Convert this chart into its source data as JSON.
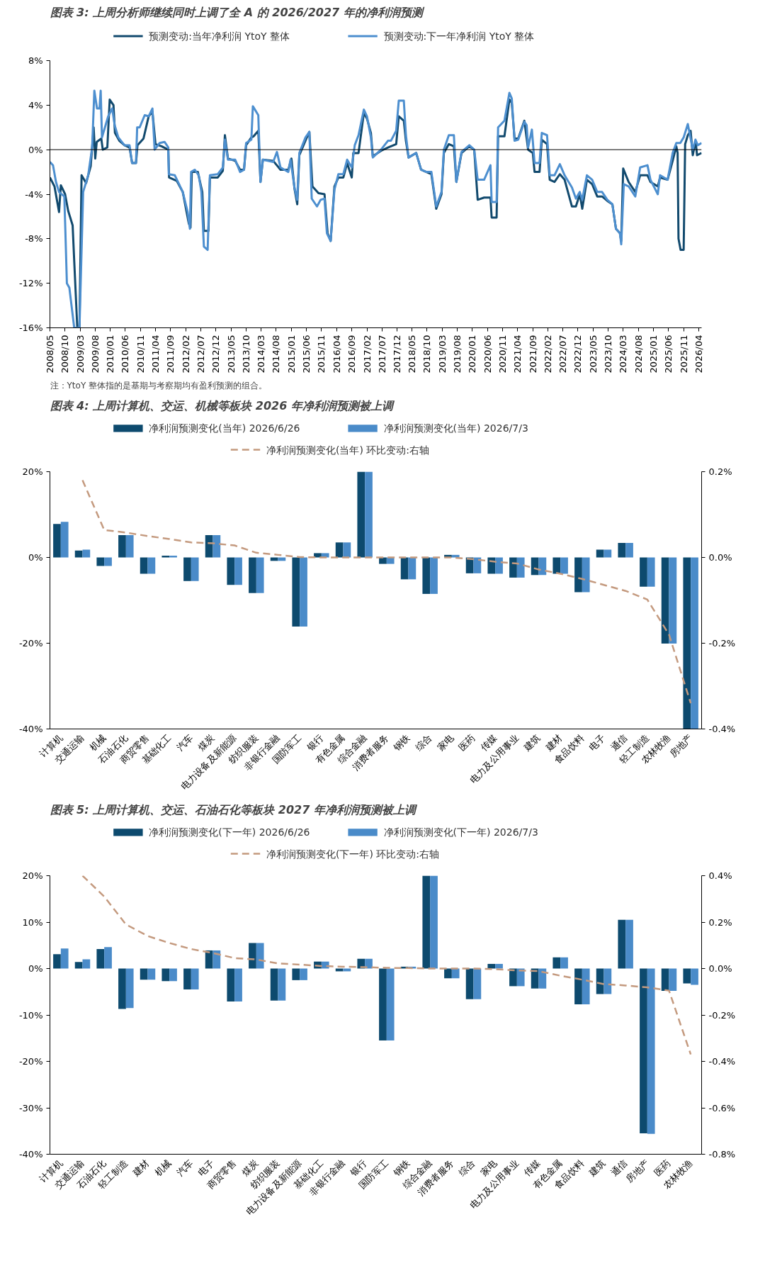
{
  "chart_data": [
    {
      "type": "line",
      "title": "图表 3: 上周分析师继续同时上调了全 A 的 2026/2027 年的净利润预测",
      "annotations": [
        "注：YtoY 整体指的是基期与考察期均有盈利预测的组合。"
      ],
      "legend": "top",
      "grid": false,
      "line_style": "solid",
      "xlim": [
        "2008-05-01",
        "2026-05-01"
      ],
      "ylim": [
        -16,
        8
      ],
      "yticks": [
        {
          "value": 8,
          "label": "8%"
        },
        {
          "value": 4,
          "label": "4%"
        },
        {
          "value": 0,
          "label": "0%"
        },
        {
          "value": -4,
          "label": "-4%"
        },
        {
          "value": -8,
          "label": "-8%"
        },
        {
          "value": -12,
          "label": "-12%"
        },
        {
          "value": -16,
          "label": "-16%"
        }
      ],
      "xticks": [
        {
          "value": "2008-05",
          "label": "2008/05"
        },
        {
          "value": "2008-10",
          "label": "2008/10"
        },
        {
          "value": "2009-03",
          "label": "2009/03"
        },
        {
          "value": "2009-08",
          "label": "2009/08"
        },
        {
          "value": "2010-01",
          "label": "2010/01"
        },
        {
          "value": "2010-06",
          "label": "2010/06"
        },
        {
          "value": "2010-11",
          "label": "2010/11"
        },
        {
          "value": "2011-04",
          "label": "2011/04"
        },
        {
          "value": "2011-09",
          "label": "2011/09"
        },
        {
          "value": "2012-02",
          "label": "2012/02"
        },
        {
          "value": "2012-07",
          "label": "2012/07"
        },
        {
          "value": "2012-12",
          "label": "2012/12"
        },
        {
          "value": "2013-05",
          "label": "2013/05"
        },
        {
          "value": "2013-10",
          "label": "2013/10"
        },
        {
          "value": "2014-03",
          "label": "2014/03"
        },
        {
          "value": "2014-08",
          "label": "2014/08"
        },
        {
          "value": "2015-01",
          "label": "2015/01"
        },
        {
          "value": "2015-06",
          "label": "2015/06"
        },
        {
          "value": "2015-11",
          "label": "2015/11"
        },
        {
          "value": "2016-04",
          "label": "2016/04"
        },
        {
          "value": "2016-09",
          "label": "2016/09"
        },
        {
          "value": "2017-02",
          "label": "2017/02"
        },
        {
          "value": "2017-07",
          "label": "2017/07"
        },
        {
          "value": "2017-12",
          "label": "2017/12"
        },
        {
          "value": "2018-05",
          "label": "2018/05"
        },
        {
          "value": "2018-10",
          "label": "2018/10"
        },
        {
          "value": "2019-03",
          "label": "2019/03"
        },
        {
          "value": "2019-08",
          "label": "2019/08"
        },
        {
          "value": "2020-01",
          "label": "2020/01"
        },
        {
          "value": "2020-06",
          "label": "2020/06"
        },
        {
          "value": "2020-11",
          "label": "2020/11"
        },
        {
          "value": "2021-04",
          "label": "2021/04"
        },
        {
          "value": "2021-09",
          "label": "2021/09"
        },
        {
          "value": "2022-02",
          "label": "2022/02"
        },
        {
          "value": "2022-07",
          "label": "2022/07"
        },
        {
          "value": "2022-12",
          "label": "2022/12"
        },
        {
          "value": "2023-05",
          "label": "2023/05"
        },
        {
          "value": "2023-10",
          "label": "2023/10"
        },
        {
          "value": "2024-03",
          "label": "2024/03"
        },
        {
          "value": "2024-08",
          "label": "2024/08"
        },
        {
          "value": "2025-01",
          "label": "2025/01"
        },
        {
          "value": "2025-06",
          "label": "2025/06"
        },
        {
          "value": "2025-11",
          "label": "2025/11"
        },
        {
          "value": "2026-04",
          "label": "2026/04"
        }
      ],
      "ref_lines": [
        {
          "axis": "y",
          "value": 0,
          "color": "#000000"
        }
      ],
      "series": [
        {
          "name": "预测变动:当年净利润 YtoY 整体",
          "color": "#124a6e",
          "x": [
            "2008-05-01",
            "2008-06-16",
            "2008-08-01",
            "2008-08-19",
            "2008-10-01",
            "2008-11-01",
            "2008-12-16",
            "2009-01-01",
            "2009-02-01",
            "2009-02-23",
            "2009-03-16",
            "2009-05-01",
            "2009-06-16",
            "2009-07-16",
            "2009-08-01",
            "2009-08-16",
            "2009-10-01",
            "2009-10-16",
            "2009-12-01",
            "2009-12-25",
            "2010-02-01",
            "2010-02-16",
            "2010-04-01",
            "2010-05-23",
            "2010-07-13",
            "2010-08-08",
            "2010-09-16",
            "2010-10-01",
            "2010-12-01",
            "2011-01-22",
            "2011-03-01",
            "2011-04-01",
            "2011-06-01",
            "2011-08-08",
            "2011-08-16",
            "2011-11-01",
            "2012-01-01",
            "2012-03-01",
            "2012-03-19",
            "2012-04-01",
            "2012-06-01",
            "2012-07-16",
            "2012-08-01",
            "2012-09-16",
            "2012-10-01",
            "2012-12-19",
            "2013-02-08",
            "2013-03-01",
            "2013-04-01",
            "2013-06-13",
            "2013-08-01",
            "2013-09-10",
            "2013-10-01",
            "2013-11-23",
            "2013-12-16",
            "2014-02-01",
            "2014-02-23",
            "2014-03-19",
            "2014-07-01",
            "2014-09-13",
            "2014-12-01",
            "2015-01-01",
            "2015-02-01",
            "2015-03-01",
            "2015-03-22",
            "2015-06-01",
            "2015-07-01",
            "2015-08-01",
            "2015-10-01",
            "2015-12-01",
            "2016-01-01",
            "2016-02-01",
            "2016-03-10",
            "2016-04-19",
            "2016-06-08",
            "2016-07-16",
            "2016-09-01",
            "2016-09-16",
            "2016-11-08",
            "2017-01-01",
            "2017-02-01",
            "2017-03-13",
            "2017-04-01",
            "2017-06-23",
            "2017-09-01",
            "2017-11-23",
            "2017-12-19",
            "2018-02-08",
            "2018-03-01",
            "2018-03-28",
            "2018-06-13",
            "2018-08-01",
            "2018-09-23",
            "2018-11-13",
            "2019-01-01",
            "2019-02-23",
            "2019-03-19",
            "2019-05-08",
            "2019-06-28",
            "2019-07-23",
            "2019-09-13",
            "2019-12-01",
            "2020-01-19",
            "2020-02-23",
            "2020-04-28",
            "2020-07-01",
            "2020-07-13",
            "2020-09-01",
            "2020-09-16",
            "2020-11-19",
            "2021-01-08",
            "2021-02-01",
            "2021-03-01",
            "2021-04-07",
            "2021-06-08",
            "2021-07-16",
            "2021-09-01",
            "2021-09-19",
            "2021-11-08",
            "2021-12-01",
            "2022-01-23",
            "2022-02-19",
            "2022-04-08",
            "2022-06-01",
            "2022-07-19",
            "2022-10-01",
            "2022-11-10",
            "2022-12-19",
            "2023-01-13",
            "2023-03-01",
            "2023-04-23",
            "2023-06-13",
            "2023-08-01",
            "2023-09-23",
            "2023-11-13",
            "2023-12-19",
            "2024-01-28",
            "2024-02-10",
            "2024-03-01",
            "2024-04-25",
            "2024-07-01",
            "2024-08-19",
            "2024-11-01",
            "2024-12-01",
            "2025-02-13",
            "2025-03-08",
            "2025-05-23",
            "2025-07-13",
            "2025-08-19",
            "2025-09-01",
            "2025-09-10",
            "2025-10-01",
            "2025-11-01",
            "2025-11-16",
            "2025-12-13",
            "2026-01-10",
            "2026-02-01",
            "2026-03-01",
            "2026-03-16",
            "2026-05-01"
          ],
          "values": [
            -2.5,
            -3.3,
            -5.6,
            -3.2,
            -4.0,
            -5.5,
            -6.8,
            -10,
            -16,
            -16,
            -2.3,
            -3.0,
            -1.5,
            2.0,
            -0.8,
            0.7,
            1.0,
            0,
            0.2,
            4.5,
            4.0,
            1.5,
            0.8,
            0.4,
            0.2,
            -1.2,
            -1.2,
            0.4,
            1.0,
            3.0,
            3.4,
            0.5,
            0.3,
            0,
            -2.5,
            -2.8,
            -3.8,
            -6.6,
            -7.0,
            -2.0,
            -2.0,
            -3.8,
            -7.3,
            -7.3,
            -2.5,
            -2.5,
            -1.9,
            1.3,
            -0.8,
            -1.0,
            -1.8,
            -1.8,
            0.4,
            1.1,
            1.2,
            1.7,
            -2.9,
            -0.9,
            -1.0,
            -1.8,
            -1.8,
            -0.8,
            -3.5,
            -4.9,
            -0.5,
            1.0,
            1.6,
            -3.3,
            -3.9,
            -4.0,
            -7.5,
            -8.2,
            -3.3,
            -2.5,
            -2.5,
            -1.2,
            -2.5,
            -0.3,
            -0.3,
            3.3,
            2.8,
            1.5,
            -0.6,
            -0.1,
            0.2,
            0.5,
            3.0,
            2.6,
            0.8,
            -0.7,
            -0.3,
            -1.8,
            -2.0,
            -2.2,
            -5.3,
            -4.0,
            -0.3,
            0.5,
            0.3,
            -2.9,
            -0.3,
            0.3,
            0,
            -4.5,
            -4.3,
            -4.3,
            -6.1,
            -6.1,
            1.2,
            1.2,
            4.5,
            4.2,
            1.0,
            1.0,
            2.6,
            0,
            -0.3,
            -2.0,
            -2.0,
            0.9,
            0.5,
            -2.7,
            -2.9,
            -2.2,
            -2.7,
            -5.1,
            -5.1,
            -4.0,
            -5.3,
            -2.7,
            -3.1,
            -4.2,
            -4.2,
            -4.6,
            -4.9,
            -7.1,
            -7.5,
            -8.2,
            -1.7,
            -2.9,
            -3.8,
            -2.3,
            -2.3,
            -2.9,
            -3.3,
            -2.5,
            -2.7,
            -1.0,
            0.3,
            -0.3,
            -8.0,
            -9.0,
            -9.0,
            0.5,
            1.3,
            1.7,
            -0.5,
            0.8,
            -0.5,
            -0.3
          ]
        },
        {
          "name": "预测变动:下一年净利润 YtoY 整体",
          "color": "#4d8fcf",
          "x": [
            "2008-05-01",
            "2008-06-01",
            "2008-07-01",
            "2008-08-01",
            "2008-09-23",
            "2008-10-01",
            "2008-10-19",
            "2008-11-13",
            "2009-01-01",
            "2009-02-23",
            "2009-04-01",
            "2009-05-22",
            "2009-07-01",
            "2009-07-23",
            "2009-08-19",
            "2009-09-13",
            "2009-09-25",
            "2009-10-08",
            "2009-12-10",
            "2010-01-19",
            "2010-02-13",
            "2010-03-22",
            "2010-05-23",
            "2010-07-13",
            "2010-08-08",
            "2010-09-16",
            "2010-09-28",
            "2010-10-23",
            "2010-12-13",
            "2011-01-22",
            "2011-03-01",
            "2011-03-23",
            "2011-05-13",
            "2011-07-01",
            "2011-08-08",
            "2011-08-13",
            "2011-10-13",
            "2012-01-01",
            "2012-02-19",
            "2012-03-13",
            "2012-03-25",
            "2012-05-01",
            "2012-06-10",
            "2012-07-07",
            "2012-08-01",
            "2012-09-08",
            "2012-10-01",
            "2012-12-19",
            "2013-02-08",
            "2013-03-01",
            "2013-04-01",
            "2013-06-13",
            "2013-08-01",
            "2013-09-10",
            "2013-10-01",
            "2013-11-23",
            "2013-12-08",
            "2014-02-01",
            "2014-02-23",
            "2014-03-19",
            "2014-07-01",
            "2014-08-08",
            "2014-09-13",
            "2014-12-01",
            "2014-12-23",
            "2015-02-01",
            "2015-02-28",
            "2015-03-22",
            "2015-05-23",
            "2015-07-01",
            "2015-07-25",
            "2015-09-16",
            "2015-10-23",
            "2015-12-01",
            "2015-12-25",
            "2016-02-01",
            "2016-03-10",
            "2016-04-19",
            "2016-06-08",
            "2016-07-16",
            "2016-09-01",
            "2016-10-01",
            "2016-11-08",
            "2017-01-01",
            "2017-02-01",
            "2017-03-13",
            "2017-04-01",
            "2017-06-23",
            "2017-09-01",
            "2017-10-01",
            "2017-11-23",
            "2017-12-19",
            "2018-02-08",
            "2018-03-01",
            "2018-03-28",
            "2018-06-13",
            "2018-08-01",
            "2018-09-23",
            "2018-11-13",
            "2019-01-01",
            "2019-02-23",
            "2019-03-19",
            "2019-05-08",
            "2019-06-28",
            "2019-07-23",
            "2019-09-13",
            "2019-12-01",
            "2020-01-19",
            "2020-02-23",
            "2020-04-28",
            "2020-07-01",
            "2020-07-13",
            "2020-09-01",
            "2020-09-16",
            "2020-11-19",
            "2021-01-08",
            "2021-02-01",
            "2021-03-01",
            "2021-04-07",
            "2021-06-08",
            "2021-07-01",
            "2021-07-16",
            "2021-08-23",
            "2021-09-19",
            "2021-11-08",
            "2021-12-01",
            "2022-01-23",
            "2022-02-19",
            "2022-04-08",
            "2022-06-01",
            "2022-07-19",
            "2022-10-01",
            "2022-11-10",
            "2022-12-19",
            "2023-01-13",
            "2023-03-01",
            "2023-04-23",
            "2023-06-13",
            "2023-08-01",
            "2023-09-23",
            "2023-11-13",
            "2023-12-19",
            "2024-01-28",
            "2024-02-10",
            "2024-03-07",
            "2024-04-25",
            "2024-07-01",
            "2024-08-19",
            "2024-11-01",
            "2024-12-01",
            "2025-02-13",
            "2025-03-08",
            "2025-05-23",
            "2025-07-13",
            "2025-08-19",
            "2025-09-28",
            "2025-11-01",
            "2025-12-13",
            "2026-02-01",
            "2026-02-28",
            "2026-03-23",
            "2026-05-01"
          ],
          "values": [
            -1.1,
            -1.4,
            -2.9,
            -3.8,
            -4.2,
            -6.5,
            -12,
            -12.4,
            -16,
            -16,
            -3.8,
            -2.3,
            0.2,
            5.3,
            3.7,
            3.7,
            5.3,
            1.1,
            3.0,
            3.7,
            2.2,
            1.1,
            0.4,
            0.4,
            -1.2,
            -1.2,
            2.0,
            2.0,
            3.1,
            3.0,
            3.7,
            0,
            0.6,
            0.7,
            0.2,
            -2.2,
            -2.3,
            -3.8,
            -5.6,
            -7.1,
            -2.0,
            -1.8,
            -2.3,
            -3.8,
            -8.7,
            -9.0,
            -2.3,
            -2.2,
            -1.6,
            0.9,
            -0.9,
            -0.9,
            -2.0,
            -1.8,
            0.6,
            0.9,
            3.9,
            3.1,
            -2.9,
            -0.9,
            -1.1,
            -0.2,
            -1.6,
            -2.0,
            -0.9,
            -3.4,
            -4.5,
            -0.3,
            1.1,
            1.6,
            -4.4,
            -5.1,
            -4.5,
            -4.4,
            -7.5,
            -8.2,
            -3.6,
            -2.2,
            -2.2,
            -0.9,
            -1.6,
            0.4,
            1.3,
            3.6,
            3.0,
            1.1,
            -0.7,
            0,
            0.8,
            0.8,
            1.7,
            4.4,
            4.4,
            1.3,
            -0.7,
            -0.3,
            -1.8,
            -2.0,
            -2.0,
            -5.1,
            -3.8,
            0,
            1.3,
            1.3,
            -2.9,
            -0.2,
            0.4,
            0,
            -2.7,
            -2.7,
            -1.4,
            -4.7,
            -4.7,
            2.0,
            2.6,
            5.1,
            4.6,
            0.8,
            0.9,
            2.5,
            2.2,
            0.2,
            1.8,
            -1.2,
            -1.2,
            1.5,
            1.3,
            -2.3,
            -2.3,
            -1.3,
            -2.3,
            -3.4,
            -4.4,
            -3.8,
            -4.5,
            -2.3,
            -2.7,
            -3.8,
            -3.8,
            -4.5,
            -4.9,
            -7.1,
            -7.5,
            -8.5,
            -3.1,
            -3.3,
            -4.2,
            -1.6,
            -1.4,
            -2.7,
            -4.0,
            -2.3,
            -2.7,
            -0.3,
            0.6,
            0.6,
            1.1,
            2.3,
            0,
            0.9,
            0.4,
            0.6
          ]
        }
      ]
    },
    {
      "type": "bar",
      "title": "图表 4: 上周计算机、交运、机械等板块 2026 年净利润预测被上调",
      "legend": "top",
      "grid": false,
      "categories": [
        "计算机",
        "交通运输",
        "机械",
        "石油石化",
        "商贸零售",
        "基础化工",
        "汽车",
        "煤炭",
        "电力设备及新能源",
        "纺织服装",
        "非银行金融",
        "国防军工",
        "银行",
        "有色金属",
        "综合金融",
        "消费者服务",
        "钢铁",
        "综合",
        "家电",
        "医药",
        "传媒",
        "电力及公用事业",
        "建筑",
        "建材",
        "食品饮料",
        "电子",
        "通信",
        "轻工制造",
        "农林牧渔",
        "房地产"
      ],
      "ylim": [
        -40,
        20
      ],
      "yticks": [
        {
          "value": 20,
          "label": "20%"
        },
        {
          "value": 0,
          "label": "0%"
        },
        {
          "value": -20,
          "label": "-20%"
        },
        {
          "value": -40,
          "label": "-40%"
        }
      ],
      "y2lim": [
        -0.4,
        0.2
      ],
      "y2ticks": [
        {
          "value": 0.2,
          "label": "0.2%"
        },
        {
          "value": 0,
          "label": "0.0%"
        },
        {
          "value": -0.2,
          "label": "-0.2%"
        },
        {
          "value": -0.4,
          "label": "-0.4%"
        }
      ],
      "series": [
        {
          "name": "净利润预测变化(当年) 2026/6/26",
          "color": "#0d4a6e",
          "values": [
            7.8,
            1.6,
            -2.0,
            5.2,
            -3.8,
            0.4,
            -5.5,
            5.2,
            -6.4,
            -8.3,
            -0.8,
            -16.1,
            1.0,
            3.5,
            20,
            -1.5,
            -5.1,
            -8.5,
            0.6,
            -3.7,
            -3.8,
            -4.7,
            -4.1,
            -3.8,
            -8.1,
            1.8,
            3.4,
            -6.8,
            -20.1,
            -40
          ]
        },
        {
          "name": "净利润预测变化(当年) 2026/7/3",
          "color": "#4a8bc9",
          "values": [
            8.3,
            1.8,
            -2.0,
            5.2,
            -3.8,
            0.4,
            -5.5,
            5.2,
            -6.4,
            -8.3,
            -0.8,
            -16.1,
            1.0,
            3.5,
            20,
            -1.5,
            -5.1,
            -8.5,
            0.6,
            -3.7,
            -3.8,
            -4.7,
            -4.1,
            -3.8,
            -8.1,
            1.8,
            3.4,
            -6.8,
            -20.1,
            -40
          ]
        },
        {
          "name": "净利润预测变化(当年) 环比变动:右轴",
          "type": "line",
          "axis": "y2",
          "line_style": "dashed",
          "color": "#c49a7f",
          "values": [
            null,
            0.18,
            0.064,
            0.058,
            0.05,
            0.043,
            0.035,
            0.033,
            0.028,
            0.011,
            0.006,
            0.001,
            0,
            0,
            0,
            0,
            0,
            0,
            0,
            -0.004,
            -0.01,
            -0.014,
            -0.028,
            -0.038,
            -0.05,
            -0.064,
            -0.078,
            -0.098,
            -0.18,
            -0.34
          ]
        }
      ]
    },
    {
      "type": "bar",
      "title": "图表 5: 上周计算机、交运、石油石化等板块 2027 年净利润预测被上调",
      "legend": "top",
      "grid": false,
      "categories": [
        "计算机",
        "交通运输",
        "石油石化",
        "轻工制造",
        "建材",
        "机械",
        "汽车",
        "电子",
        "商贸零售",
        "煤炭",
        "纺织服装",
        "电力设备及新能源",
        "基础化工",
        "非银行金融",
        "银行",
        "国防军工",
        "钢铁",
        "综合金融",
        "消费者服务",
        "综合",
        "家电",
        "电力及公用事业",
        "传媒",
        "有色金属",
        "食品饮料",
        "建筑",
        "通信",
        "房地产",
        "医药",
        "农林牧渔"
      ],
      "ylim": [
        -40,
        20
      ],
      "yticks": [
        {
          "value": 20,
          "label": "20%"
        },
        {
          "value": 10,
          "label": "10%"
        },
        {
          "value": 0,
          "label": "0%"
        },
        {
          "value": -10,
          "label": "-10%"
        },
        {
          "value": -20,
          "label": "-20%"
        },
        {
          "value": -30,
          "label": "-30%"
        },
        {
          "value": -40,
          "label": "-40%"
        }
      ],
      "y2lim": [
        -0.8,
        0.4
      ],
      "y2ticks": [
        {
          "value": 0.4,
          "label": "0.4%"
        },
        {
          "value": 0.2,
          "label": "0.2%"
        },
        {
          "value": 0,
          "label": "0.0%"
        },
        {
          "value": -0.2,
          "label": "-0.2%"
        },
        {
          "value": -0.4,
          "label": "-0.4%"
        },
        {
          "value": -0.6,
          "label": "-0.6%"
        },
        {
          "value": -0.8,
          "label": "-0.8%"
        }
      ],
      "series": [
        {
          "name": "净利润预测变化(下一年) 2026/6/26",
          "color": "#0d4a6e",
          "values": [
            3.1,
            1.4,
            4.2,
            -8.7,
            -2.4,
            -2.7,
            -4.5,
            3.9,
            -7.1,
            5.5,
            -6.9,
            -2.5,
            1.5,
            -0.6,
            2.1,
            -15.5,
            0.4,
            20,
            -2.1,
            -6.6,
            1.0,
            -3.8,
            -4.3,
            2.4,
            -7.7,
            -5.5,
            10.5,
            -35.5,
            -4.8,
            -3.2
          ]
        },
        {
          "name": "净利润预测变化(下一年) 2026/7/3",
          "color": "#4a8bc9",
          "values": [
            4.3,
            2.0,
            4.6,
            -8.5,
            -2.4,
            -2.7,
            -4.5,
            3.9,
            -7.1,
            5.5,
            -6.9,
            -2.5,
            1.5,
            -0.6,
            2.1,
            -15.5,
            0.4,
            20,
            -2.1,
            -6.6,
            1.0,
            -3.8,
            -4.3,
            2.4,
            -7.7,
            -5.5,
            10.5,
            -35.6,
            -4.8,
            -3.5
          ]
        },
        {
          "name": "净利润预测变化(下一年) 环比变动:右轴",
          "type": "line",
          "axis": "y2",
          "line_style": "dashed",
          "color": "#c49a7f",
          "values": [
            null,
            0.4,
            0.31,
            0.19,
            0.14,
            0.11,
            0.084,
            0.067,
            0.045,
            0.039,
            0.022,
            0.017,
            0.011,
            0.008,
            0.006,
            0.003,
            0.002,
            0,
            0,
            0,
            -0.003,
            -0.008,
            -0.011,
            -0.031,
            -0.048,
            -0.067,
            -0.073,
            -0.081,
            -0.095,
            -0.37
          ]
        }
      ]
    }
  ]
}
